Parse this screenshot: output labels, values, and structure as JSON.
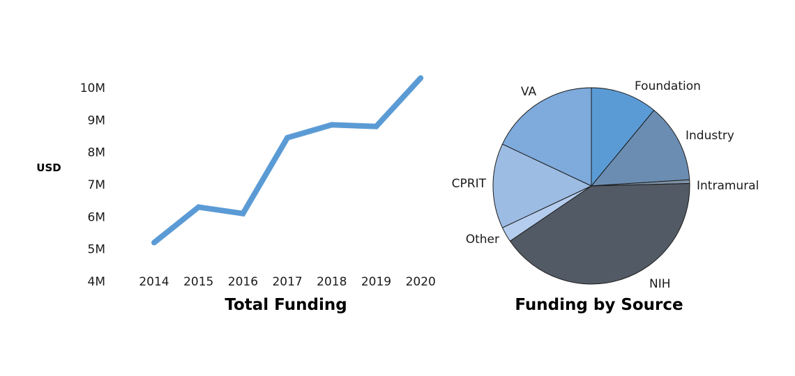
{
  "chart_data": [
    {
      "type": "line",
      "title": "Total Funding",
      "xlabel": "",
      "ylabel": "USD",
      "x": [
        "2014",
        "2015",
        "2016",
        "2017",
        "2018",
        "2019",
        "2020"
      ],
      "values": [
        5.2,
        6.3,
        6.1,
        8.45,
        8.85,
        8.8,
        10.3
      ],
      "y_ticks": [
        "4M",
        "5M",
        "6M",
        "7M",
        "8M",
        "9M",
        "10M"
      ],
      "y_tick_values": [
        4,
        5,
        6,
        7,
        8,
        9,
        10
      ],
      "ylim": [
        4,
        10
      ],
      "y_unit": "M",
      "grid": false,
      "color": "#5b9bd5"
    },
    {
      "type": "pie",
      "title": "Funding by Source",
      "slices": [
        {
          "label": "Foundation",
          "value": 11,
          "color": "#5b9bd5"
        },
        {
          "label": "Industry",
          "value": 13,
          "color": "#6b8db2"
        },
        {
          "label": "Intramural",
          "value": 0.6,
          "color": "#7f93a8"
        },
        {
          "label": "NIH",
          "value": 40.9,
          "color": "#525a65"
        },
        {
          "label": "Other",
          "value": 2.5,
          "color": "#b4ccee"
        },
        {
          "label": "CPRIT",
          "value": 14,
          "color": "#9dbce3"
        },
        {
          "label": "VA",
          "value": 18,
          "color": "#7eaadc"
        }
      ],
      "start_angle": "12 o'clock",
      "direction": "clockwise"
    }
  ]
}
